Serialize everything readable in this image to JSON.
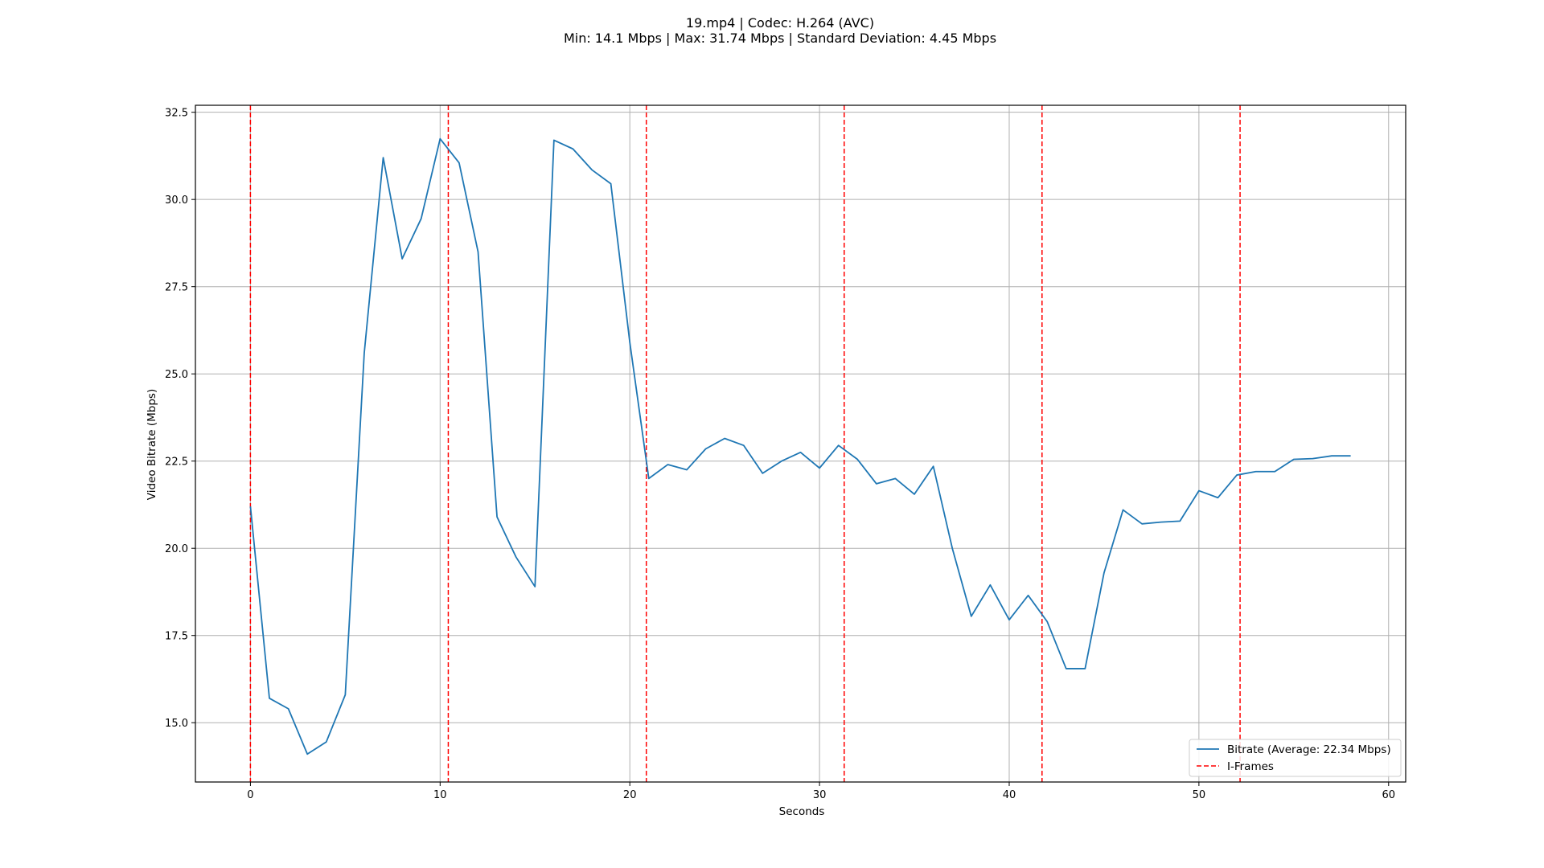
{
  "chart_data": {
    "type": "line",
    "title": "19.mp4 | Codec: H.264 (AVC)",
    "subtitle": "Min: 14.1 Mbps | Max: 31.74 Mbps | Standard Deviation: 4.45 Mbps",
    "xlabel": "Seconds",
    "ylabel": "Video Bitrate (Mbps)",
    "xlim": [
      -2.9,
      60.9
    ],
    "ylim": [
      13.3,
      32.7
    ],
    "x_ticks": [
      0,
      10,
      20,
      30,
      40,
      50,
      60
    ],
    "x_tick_labels": [
      "0",
      "10",
      "20",
      "30",
      "40",
      "50",
      "60"
    ],
    "y_ticks": [
      15.0,
      17.5,
      20.0,
      22.5,
      25.0,
      27.5,
      30.0,
      32.5
    ],
    "y_tick_labels": [
      "15.0",
      "17.5",
      "20.0",
      "22.5",
      "25.0",
      "27.5",
      "30.0",
      "32.5"
    ],
    "grid": true,
    "legend_position": "bottom-right",
    "series": [
      {
        "name": "Bitrate (Average: 22.34 Mbps)",
        "color": "#1f77b4",
        "x": [
          0,
          1,
          2,
          3,
          4,
          5,
          6,
          7,
          8,
          9,
          10,
          11,
          12,
          13,
          14,
          15,
          16,
          17,
          18,
          19,
          20,
          21,
          22,
          23,
          24,
          25,
          26,
          27,
          28,
          29,
          30,
          31,
          32,
          33,
          34,
          35,
          36,
          37,
          38,
          39,
          40,
          41,
          42,
          43,
          44,
          45,
          46,
          47,
          48,
          49,
          50,
          51,
          52,
          53,
          54,
          55,
          56,
          57,
          58
        ],
        "values": [
          21.2,
          15.7,
          15.4,
          14.1,
          14.45,
          15.8,
          25.6,
          31.2,
          28.3,
          29.45,
          31.74,
          31.05,
          28.5,
          20.9,
          19.75,
          18.9,
          31.7,
          31.45,
          30.85,
          30.45,
          25.9,
          22.0,
          22.4,
          22.25,
          22.85,
          23.15,
          22.95,
          22.15,
          22.5,
          22.75,
          22.3,
          22.95,
          22.55,
          21.85,
          22.0,
          21.55,
          22.35,
          20.0,
          18.05,
          18.95,
          17.95,
          18.65,
          17.9,
          16.55,
          16.55,
          19.3,
          21.1,
          20.7,
          20.75,
          20.78,
          21.65,
          21.45,
          22.1,
          22.2,
          22.2,
          22.55,
          22.57,
          22.65,
          22.65
        ]
      }
    ],
    "iframes": {
      "name": "I-Frames",
      "color": "#ff0000",
      "x": [
        0,
        10.43,
        20.87,
        31.3,
        41.73,
        52.17
      ]
    }
  }
}
